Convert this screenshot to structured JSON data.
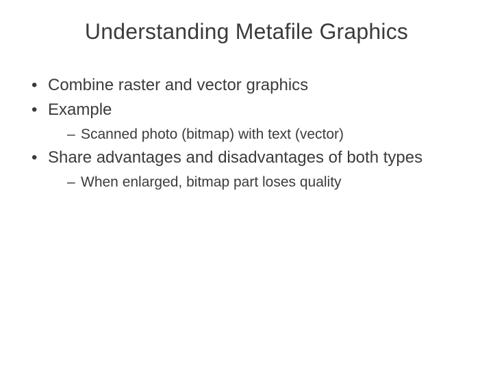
{
  "slide": {
    "title": "Understanding Metafile Graphics",
    "title_fontsize": 32,
    "body_fontsize_l1": 24,
    "body_fontsize_l2": 21,
    "text_color": "#3b3b3b",
    "background_color": "#ffffff",
    "bullets": [
      {
        "text": "Combine raster and vector graphics",
        "children": []
      },
      {
        "text": "Example",
        "children": [
          {
            "text": "Scanned photo (bitmap) with text (vector)"
          }
        ]
      },
      {
        "text": "Share advantages and disadvantages of both types",
        "children": [
          {
            "text": "When enlarged, bitmap part loses quality"
          }
        ]
      }
    ]
  }
}
